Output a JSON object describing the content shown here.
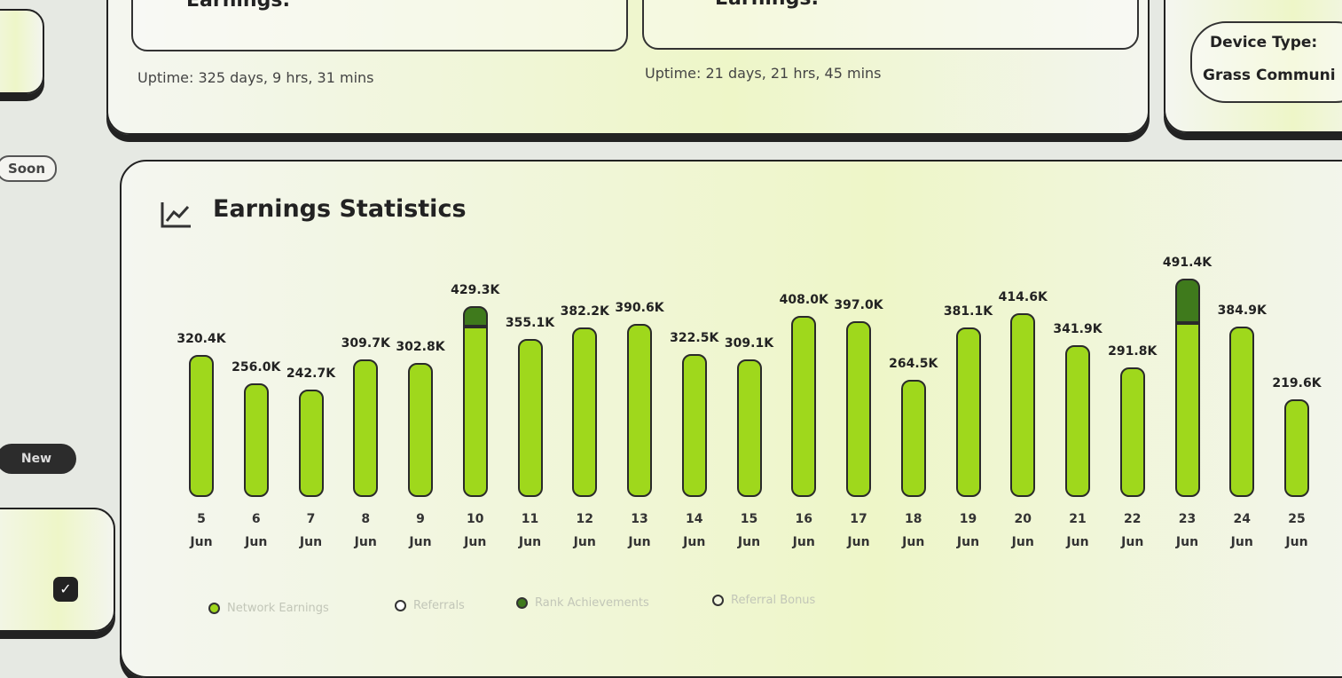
{
  "top_cards": [
    {
      "label": "Earnings:",
      "uptime": "Uptime: 325 days, 9 hrs, 31 mins"
    },
    {
      "label": "Earnings:",
      "uptime": "Uptime: 21 days, 21 hrs, 45 mins"
    }
  ],
  "device": {
    "label": "Device Type:",
    "value": "Grass Communi"
  },
  "sidebar": {
    "soon": "Soon",
    "new": "New"
  },
  "chart_data": {
    "type": "bar",
    "title": "Earnings Statistics",
    "categories": [
      "5 Jun",
      "6 Jun",
      "7 Jun",
      "8 Jun",
      "9 Jun",
      "10 Jun",
      "11 Jun",
      "12 Jun",
      "13 Jun",
      "14 Jun",
      "15 Jun",
      "16 Jun",
      "17 Jun",
      "18 Jun",
      "19 Jun",
      "20 Jun",
      "21 Jun",
      "22 Jun",
      "23 Jun",
      "24 Jun",
      "25 Jun"
    ],
    "values": [
      320.4,
      256.0,
      242.7,
      309.7,
      302.8,
      429.3,
      355.1,
      382.2,
      390.6,
      322.5,
      309.1,
      408.0,
      397.0,
      264.5,
      381.1,
      414.6,
      341.9,
      291.8,
      491.4,
      384.9,
      219.6
    ],
    "value_labels": [
      "320.4K",
      "256.0K",
      "242.7K",
      "309.7K",
      "302.8K",
      "429.3K",
      "355.1K",
      "382.2K",
      "390.6K",
      "322.5K",
      "309.1K",
      "408.0K",
      "397.0K",
      "264.5K",
      "381.1K",
      "414.6K",
      "341.9K",
      "291.8K",
      "491.4K",
      "384.9K",
      "219.6K"
    ],
    "series": [
      {
        "name": "Network Earnings",
        "color": "#9fd81c",
        "values": [
          320.4,
          256.0,
          242.7,
          309.7,
          302.8,
          384.3,
          355.1,
          382.2,
          390.6,
          322.5,
          309.1,
          408.0,
          397.0,
          264.5,
          381.1,
          414.6,
          341.9,
          291.8,
          391.4,
          384.9,
          219.6
        ]
      },
      {
        "name": "Referrals",
        "color": "#ffffff"
      },
      {
        "name": "Rank Achievements",
        "color": "#3f7a1c",
        "values": [
          null,
          null,
          null,
          null,
          null,
          45,
          null,
          null,
          null,
          null,
          null,
          null,
          null,
          null,
          null,
          null,
          null,
          null,
          100,
          null,
          null
        ]
      },
      {
        "name": "Referral Bonus",
        "color": "#f3f7e0"
      }
    ]
  }
}
